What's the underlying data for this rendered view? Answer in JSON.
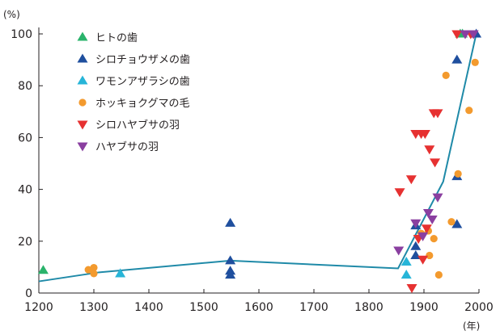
{
  "chart_data": {
    "type": "scatter",
    "y_unit_label": "(%)",
    "x_unit_label": "(年)",
    "xlim": [
      1200,
      2000
    ],
    "ylim": [
      0,
      100
    ],
    "x_ticks": [
      1200,
      1300,
      1400,
      1500,
      1600,
      1700,
      1800,
      1900,
      2000
    ],
    "y_ticks": [
      0,
      20,
      40,
      60,
      80,
      100
    ],
    "grid": false,
    "legend_position": "top-left",
    "series": [
      {
        "name": "ヒトの歯",
        "marker": "triangle-up",
        "color": "#2ab36b",
        "points": [
          [
            1208,
            8.8
          ],
          [
            1966,
            100
          ],
          [
            1970,
            100
          ]
        ]
      },
      {
        "name": "シロチョウザメの歯",
        "marker": "triangle-up",
        "color": "#1f4f9e",
        "points": [
          [
            1548,
            27
          ],
          [
            1548,
            12.5
          ],
          [
            1548,
            8.5
          ],
          [
            1548,
            7
          ],
          [
            1885,
            26
          ],
          [
            1885,
            18
          ],
          [
            1885,
            14.5
          ],
          [
            1960,
            45
          ],
          [
            1960,
            26.5
          ],
          [
            1960,
            90
          ],
          [
            1995,
            100
          ]
        ]
      },
      {
        "name": "ワモンアザラシの歯",
        "marker": "triangle-up",
        "color": "#27b5d8",
        "points": [
          [
            1348,
            7.5
          ],
          [
            1868,
            12
          ],
          [
            1868,
            7
          ]
        ]
      },
      {
        "name": "ホッキョクグマの毛",
        "marker": "circle",
        "color": "#f39a2e",
        "points": [
          [
            1290,
            9
          ],
          [
            1300,
            9.8
          ],
          [
            1300,
            7.5
          ],
          [
            1895,
            23
          ],
          [
            1908,
            24
          ],
          [
            1910,
            14.5
          ],
          [
            1918,
            21
          ],
          [
            1927,
            7
          ],
          [
            1940,
            84
          ],
          [
            1950,
            27.5
          ],
          [
            1962,
            46
          ],
          [
            1982,
            70.5
          ],
          [
            1993,
            89
          ]
        ]
      },
      {
        "name": "シロハヤブサの羽",
        "marker": "triangle-down",
        "color": "#e63131",
        "points": [
          [
            1856,
            39
          ],
          [
            1877,
            44
          ],
          [
            1878,
            2
          ],
          [
            1885,
            61.5
          ],
          [
            1890,
            21
          ],
          [
            1895,
            61.5
          ],
          [
            1898,
            13
          ],
          [
            1902,
            61.5
          ],
          [
            1905,
            25
          ],
          [
            1910,
            55.5
          ],
          [
            1918,
            69.5
          ],
          [
            1920,
            50.5
          ],
          [
            1925,
            69.5
          ],
          [
            1960,
            100
          ],
          [
            1985,
            100
          ]
        ]
      },
      {
        "name": "ハヤブサの羽",
        "marker": "triangle-down",
        "color": "#8a3fa0",
        "points": [
          [
            1854,
            16.5
          ],
          [
            1885,
            27
          ],
          [
            1898,
            22
          ],
          [
            1908,
            31
          ],
          [
            1915,
            28.5
          ],
          [
            1925,
            37
          ],
          [
            1975,
            100
          ],
          [
            1990,
            100
          ]
        ]
      }
    ],
    "trend_line": {
      "color": "#1f8aa8",
      "points": [
        [
          1200,
          4.5
        ],
        [
          1310,
          8
        ],
        [
          1548,
          12.5
        ],
        [
          1853,
          9.5
        ],
        [
          1935,
          43
        ],
        [
          1995,
          100
        ]
      ]
    }
  }
}
